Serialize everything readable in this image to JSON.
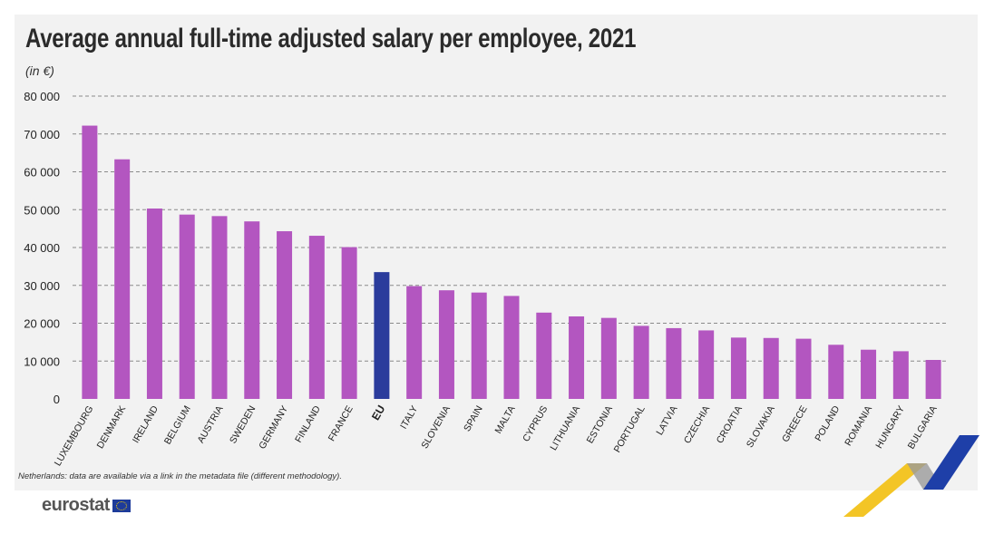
{
  "header": {
    "title": "Average annual full-time adjusted salary per employee, 2021",
    "subtitle": "(in €)"
  },
  "footnote": "Netherlands: data are available via a link in the metadata file (different methodology).",
  "logo": {
    "text": "eurostat"
  },
  "colors": {
    "bar": "#b356c0",
    "highlight": "#2b3c9c",
    "grid": "#8a8a8a",
    "background": "#f2f2f2",
    "accent_yellow": "#f2c21a",
    "accent_blue": "#1e3fa8"
  },
  "chart_data": {
    "type": "bar",
    "title": "Average annual full-time adjusted salary per employee, 2021",
    "ylabel": "(in €)",
    "xlabel": "",
    "ylim": [
      0,
      80000
    ],
    "yticks": [
      0,
      10000,
      20000,
      30000,
      40000,
      50000,
      60000,
      70000,
      80000
    ],
    "ytick_labels": [
      "0",
      "10 000",
      "20 000",
      "30 000",
      "40 000",
      "50 000",
      "60 000",
      "70 000",
      "80 000"
    ],
    "grid": "horizontal dashed",
    "highlight_category": "EU",
    "categories": [
      "LUXEMBOURG",
      "DENMARK",
      "IRELAND",
      "BELGIUM",
      "AUSTRIA",
      "SWEDEN",
      "GERMANY",
      "FINLAND",
      "FRANCE",
      "EU",
      "ITALY",
      "SLOVENIA",
      "SPAIN",
      "MALTA",
      "CYPRUS",
      "LITHUANIA",
      "ESTONIA",
      "PORTUGAL",
      "LATVIA",
      "CZECHIA",
      "CROATIA",
      "SLOVAKIA",
      "GREECE",
      "POLAND",
      "ROMANIA",
      "HUNGARY",
      "BULGARIA"
    ],
    "values": [
      72200,
      63300,
      50300,
      48700,
      48300,
      46900,
      44300,
      43100,
      40100,
      33500,
      29800,
      28700,
      28100,
      27200,
      22800,
      21800,
      21400,
      19300,
      18700,
      18100,
      16200,
      16100,
      15900,
      14300,
      13000,
      12600,
      10300
    ]
  }
}
